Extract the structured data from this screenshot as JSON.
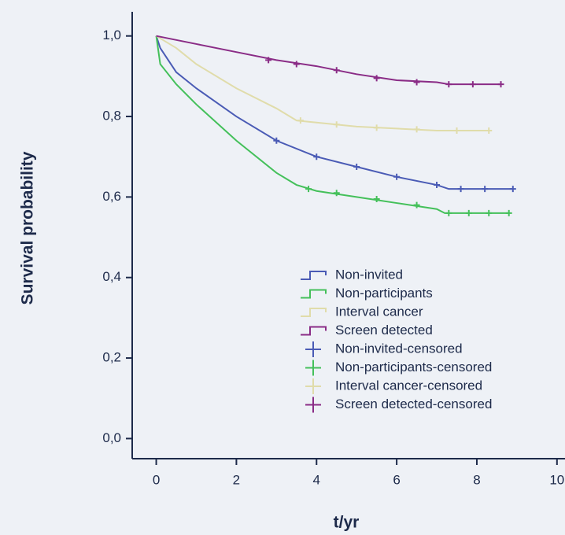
{
  "chart_data": {
    "type": "line",
    "step": true,
    "xlabel": "t/yr",
    "ylabel": "Survival probability",
    "xlim": [
      -0.6,
      10.2
    ],
    "ylim": [
      -0.05,
      1.06
    ],
    "xticks": [
      0,
      2,
      4,
      6,
      8,
      10
    ],
    "yticks": [
      {
        "value": 0,
        "label": "0,0"
      },
      {
        "value": 0.2,
        "label": "0,2"
      },
      {
        "value": 0.4,
        "label": "0,4"
      },
      {
        "value": 0.6,
        "label": "0,6"
      },
      {
        "value": 0.8,
        "label": "0,8"
      },
      {
        "value": 1,
        "label": "1,0"
      }
    ],
    "series": [
      {
        "name": "Non-invited",
        "color": "#4a5bb5",
        "marker": "line",
        "x": [
          0,
          0.1,
          0.5,
          1,
          2,
          3,
          4,
          5,
          6,
          7,
          7.3,
          8,
          8.9
        ],
        "values": [
          1,
          0.97,
          0.91,
          0.87,
          0.8,
          0.74,
          0.7,
          0.675,
          0.65,
          0.63,
          0.62,
          0.62,
          0.62
        ]
      },
      {
        "name": "Non-participants",
        "color": "#44c05a",
        "marker": "line",
        "x": [
          0,
          0.1,
          0.5,
          1,
          2,
          3,
          3.5,
          4,
          5,
          6,
          7,
          7.2,
          8.8
        ],
        "values": [
          1,
          0.93,
          0.88,
          0.83,
          0.74,
          0.66,
          0.63,
          0.615,
          0.6,
          0.585,
          0.57,
          0.56,
          0.56
        ]
      },
      {
        "name": "Interval cancer",
        "color": "#e0dcaa",
        "marker": "line",
        "x": [
          0,
          0.5,
          1,
          2,
          3,
          3.5,
          4,
          5,
          6,
          7,
          8.3
        ],
        "values": [
          1,
          0.97,
          0.93,
          0.87,
          0.82,
          0.79,
          0.785,
          0.775,
          0.77,
          0.765,
          0.765
        ]
      },
      {
        "name": "Screen detected",
        "color": "#8a2c86",
        "marker": "line",
        "x": [
          0,
          1,
          2,
          3,
          4,
          5,
          6,
          7,
          7.3,
          8.6
        ],
        "values": [
          1,
          0.98,
          0.96,
          0.94,
          0.925,
          0.905,
          0.89,
          0.885,
          0.88,
          0.88
        ]
      },
      {
        "name": "Non-invited-censored",
        "color": "#4a5bb5",
        "marker": "plus",
        "x": [
          3,
          4,
          5,
          6,
          7,
          7.6,
          8.2,
          8.9
        ],
        "values": [
          0.74,
          0.7,
          0.675,
          0.65,
          0.63,
          0.62,
          0.62,
          0.62
        ]
      },
      {
        "name": "Non-participants-censored",
        "color": "#44c05a",
        "marker": "plus",
        "x": [
          3.8,
          4.5,
          5.5,
          6.5,
          7.3,
          7.8,
          8.3,
          8.8
        ],
        "values": [
          0.62,
          0.61,
          0.595,
          0.58,
          0.56,
          0.56,
          0.56,
          0.56
        ]
      },
      {
        "name": "Interval cancer-censored",
        "color": "#e0dcaa",
        "marker": "plus",
        "x": [
          3.6,
          4.5,
          5.5,
          6.5,
          7.5,
          8.3
        ],
        "values": [
          0.79,
          0.78,
          0.772,
          0.768,
          0.765,
          0.765
        ]
      },
      {
        "name": "Screen detected-censored",
        "color": "#8a2c86",
        "marker": "plus",
        "x": [
          2.8,
          3.5,
          4.5,
          5.5,
          6.5,
          7.3,
          7.9,
          8.6
        ],
        "values": [
          0.94,
          0.93,
          0.915,
          0.895,
          0.885,
          0.88,
          0.88,
          0.88
        ]
      }
    ]
  }
}
